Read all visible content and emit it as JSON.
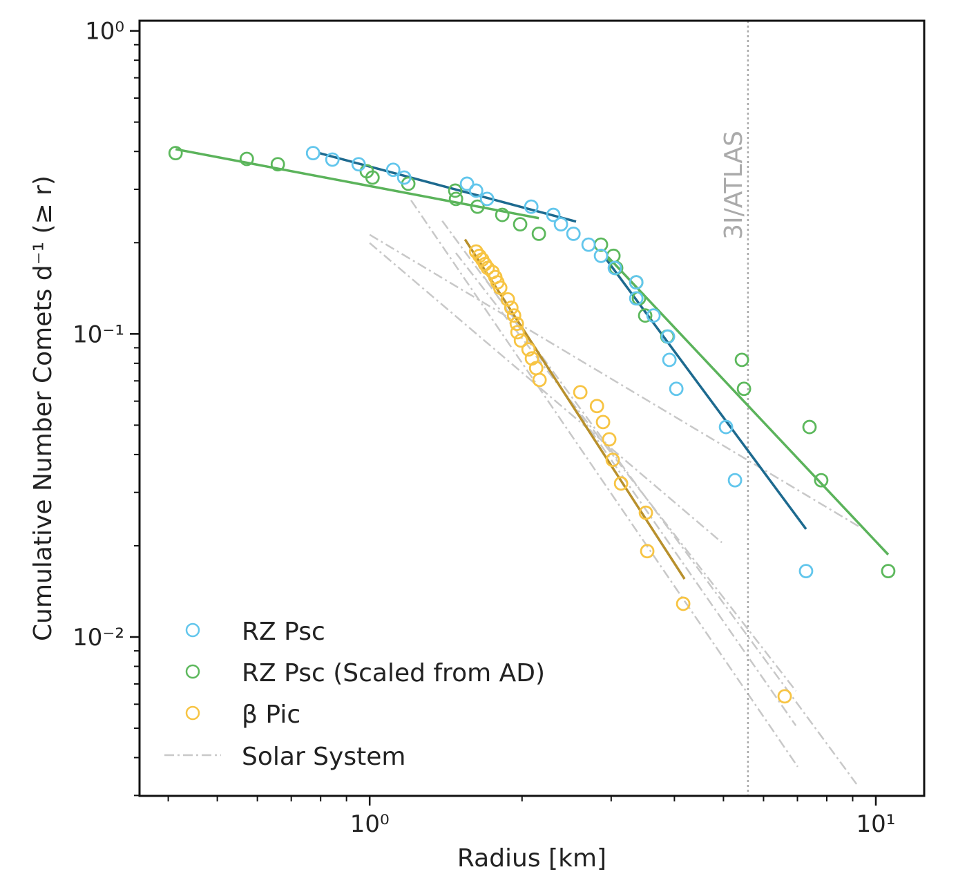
{
  "chart_data": {
    "type": "scatter",
    "xscale": "log",
    "yscale": "log",
    "xlabel": "Radius [km]",
    "ylabel": "Cumulative Number Comets d⁻¹ (≥ r)",
    "xlim": [
      0.351,
      12.46
    ],
    "ylim": [
      0.00299,
      1.08
    ],
    "grid": false,
    "legend_placement": "bottom-left",
    "x_ticks": [
      {
        "value": 1,
        "label": "10⁰"
      },
      {
        "value": 10,
        "label": "10¹"
      }
    ],
    "y_ticks": [
      {
        "value": 1,
        "label": "10⁰"
      },
      {
        "value": 0.1,
        "label": "10⁻¹"
      },
      {
        "value": 0.01,
        "label": "10⁻²"
      }
    ],
    "annotations": [
      {
        "text": "3I/ATLAS",
        "x": 5.59,
        "style": "vertical dotted line"
      }
    ],
    "series": [
      {
        "name": "RZ Psc",
        "marker_color": "#62c6ec",
        "line_color": "#1d6a8f",
        "x": [
          0.773,
          0.844,
          0.951,
          1.113,
          1.17,
          1.557,
          1.623,
          1.706,
          2.086,
          2.306,
          2.387,
          2.527,
          2.707,
          2.864,
          3.05,
          3.363,
          3.363,
          3.637,
          3.885,
          3.91,
          4.035,
          5.058,
          5.269,
          7.28
        ],
        "y": [
          0.395,
          0.376,
          0.363,
          0.348,
          0.328,
          0.313,
          0.297,
          0.279,
          0.263,
          0.247,
          0.23,
          0.214,
          0.197,
          0.181,
          0.165,
          0.148,
          0.131,
          0.115,
          0.098,
          0.0821,
          0.0659,
          0.0493,
          0.0329,
          0.0165
        ],
        "fits": [
          {
            "x": [
              0.795,
              2.557
            ],
            "y": [
              0.395,
              0.2348
            ]
          },
          {
            "x": [
              2.929,
              7.28
            ],
            "y": [
              0.177,
              0.0227
            ]
          }
        ]
      },
      {
        "name": "RZ Psc (Scaled from AD)",
        "marker_color": "#5cb85c",
        "line_color": "#5bb35b",
        "x": [
          0.4136,
          0.5718,
          0.6585,
          0.987,
          1.013,
          1.192,
          1.476,
          1.481,
          1.633,
          1.828,
          1.983,
          2.159,
          2.864,
          3.031,
          3.069,
          3.363,
          3.404,
          3.502,
          3.873,
          5.437,
          5.489,
          7.396,
          7.8,
          10.58
        ],
        "y": [
          0.395,
          0.378,
          0.363,
          0.344,
          0.328,
          0.313,
          0.297,
          0.279,
          0.263,
          0.247,
          0.23,
          0.214,
          0.197,
          0.181,
          0.165,
          0.148,
          0.131,
          0.115,
          0.098,
          0.0821,
          0.0659,
          0.0493,
          0.0329,
          0.0165
        ],
        "fits": [
          {
            "x": [
              0.4136,
              2.159
            ],
            "y": [
              0.407,
              0.241
            ]
          },
          {
            "x": [
              2.956,
              10.58
            ],
            "y": [
              0.1796,
              0.0187
            ]
          }
        ]
      },
      {
        "name": "β Pic",
        "marker_color": "#f7c443",
        "line_color": "#b8902c",
        "x": [
          1.623,
          1.648,
          1.669,
          1.69,
          1.711,
          1.749,
          1.771,
          1.788,
          1.811,
          1.875,
          1.905,
          1.929,
          1.953,
          1.959,
          1.99,
          2.06,
          2.092,
          2.133,
          2.166,
          2.607,
          2.812,
          2.891,
          2.974,
          3.021,
          3.138,
          3.513,
          3.535,
          4.163,
          6.606
        ],
        "y": [
          0.187,
          0.181,
          0.176,
          0.17,
          0.165,
          0.16,
          0.154,
          0.148,
          0.142,
          0.13,
          0.122,
          0.115,
          0.108,
          0.1013,
          0.0951,
          0.0889,
          0.083,
          0.0771,
          0.0705,
          0.0642,
          0.0578,
          0.0512,
          0.0449,
          0.0384,
          0.0321,
          0.0257,
          0.0192,
          0.01287,
          0.00637
        ],
        "fits": [
          {
            "x": [
              1.543,
              4.189
            ],
            "y": [
              0.205,
              0.01554
            ]
          }
        ]
      },
      {
        "name": "Solar System",
        "line_color": "#c8c8c8",
        "style": "dash-dot",
        "lines": [
          {
            "x": [
              1.0,
              9.24
            ],
            "y": [
              0.2125,
              0.0232
            ]
          },
          {
            "x": [
              1.0,
              4.964
            ],
            "y": [
              0.1995,
              0.0205
            ]
          },
          {
            "x": [
              1.207,
              7.01
            ],
            "y": [
              0.276,
              0.00373
            ]
          },
          {
            "x": [
              1.391,
              9.16
            ],
            "y": [
              0.236,
              0.00327
            ]
          },
          {
            "x": [
              1.48,
              6.95
            ],
            "y": [
              0.185,
              0.00664
            ]
          },
          {
            "x": [
              1.679,
              6.95
            ],
            "y": [
              0.155,
              0.0051
            ]
          }
        ]
      }
    ]
  }
}
